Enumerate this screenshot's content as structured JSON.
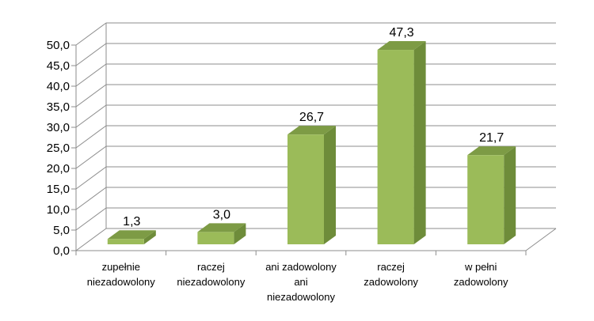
{
  "chart_data": {
    "type": "bar",
    "style": "3d-column",
    "categories": [
      [
        "zupełnie",
        "niezadowolony"
      ],
      [
        "raczej",
        "niezadowolony"
      ],
      [
        "ani zadowolony",
        "ani",
        "niezadowolony"
      ],
      [
        "raczej",
        "zadowolony"
      ],
      [
        "w pełni",
        "zadowolony"
      ]
    ],
    "values": [
      1.3,
      3.0,
      26.7,
      47.3,
      21.7
    ],
    "data_labels": [
      "1,3",
      "3,0",
      "26,7",
      "47,3",
      "21,7"
    ],
    "yticks": [
      "0,0",
      "5,0",
      "10,0",
      "15,0",
      "20,0",
      "25,0",
      "30,0",
      "35,0",
      "40,0",
      "45,0",
      "50,0"
    ],
    "ylim": [
      0,
      50
    ],
    "ystep": 5,
    "grid": true,
    "legend": "none",
    "colors": {
      "bar_front": "#9BBB59",
      "bar_side": "#6E8C3A",
      "bar_top": "#7D9B45",
      "grid": "#8C8C8C",
      "axis": "#8C8C8C"
    }
  }
}
